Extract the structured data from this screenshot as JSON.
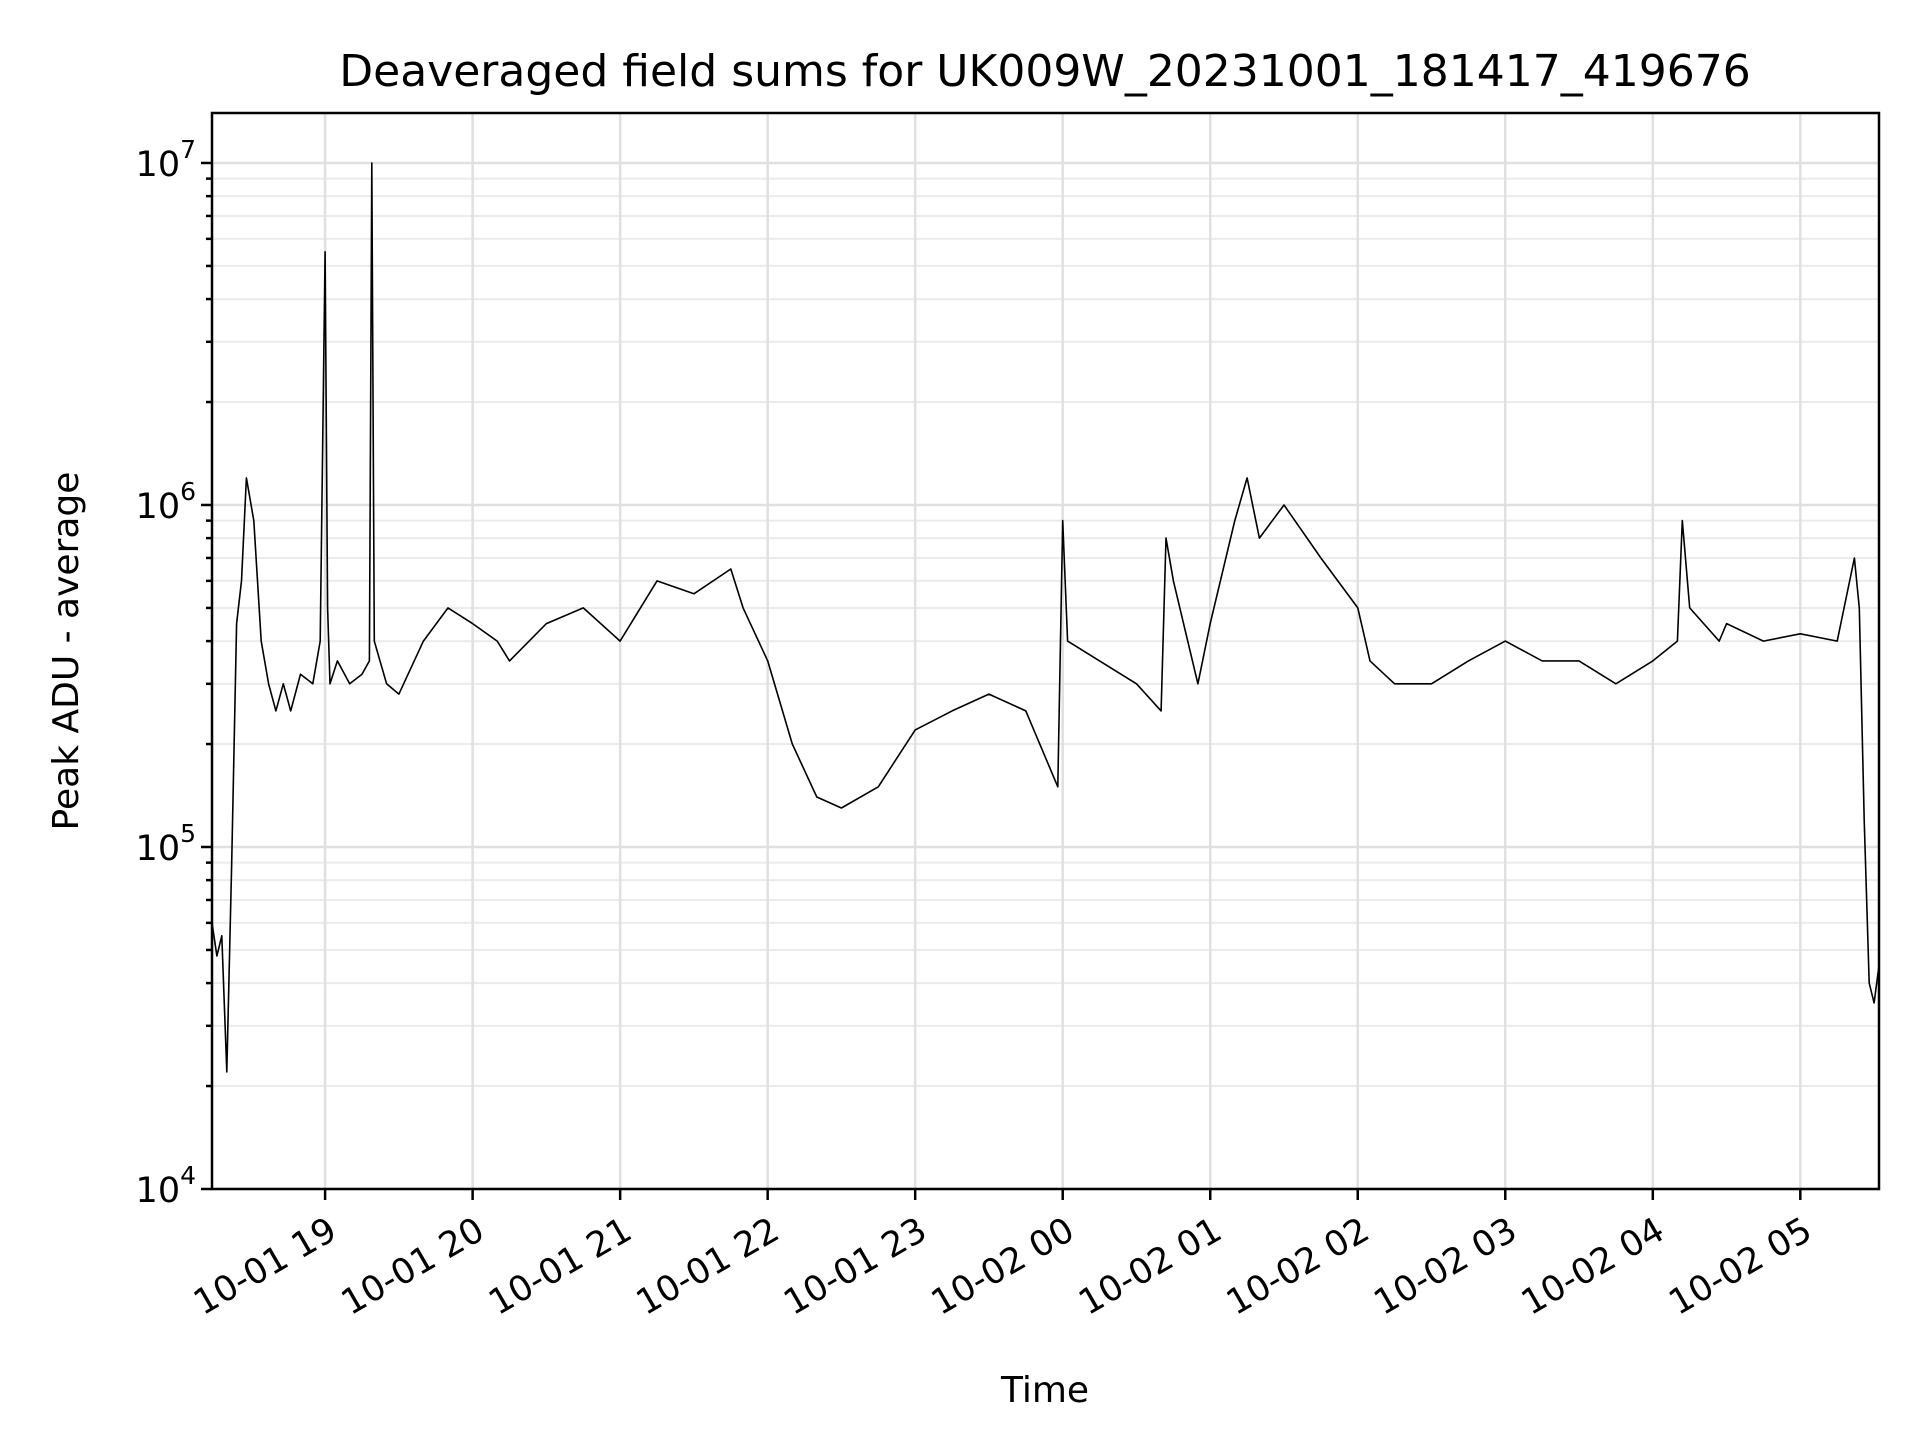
{
  "chart_data": {
    "type": "line",
    "title": "Deaveraged field sums for UK009W_20231001_181417_419676",
    "xlabel": "Time",
    "ylabel": "Peak ADU - average",
    "yscale": "log",
    "ylim": [
      10000,
      14000000
    ],
    "xlim": [
      "2023-10-01 18:14",
      "2023-10-02 05:32"
    ],
    "grid": true,
    "line_color": "#000000",
    "x_ticks": [
      {
        "value": "2023-10-01 19:00",
        "label": "10-01 19"
      },
      {
        "value": "2023-10-01 20:00",
        "label": "10-01 20"
      },
      {
        "value": "2023-10-01 21:00",
        "label": "10-01 21"
      },
      {
        "value": "2023-10-01 22:00",
        "label": "10-01 22"
      },
      {
        "value": "2023-10-01 23:00",
        "label": "10-01 23"
      },
      {
        "value": "2023-10-02 00:00",
        "label": "10-02 00"
      },
      {
        "value": "2023-10-02 01:00",
        "label": "10-02 01"
      },
      {
        "value": "2023-10-02 02:00",
        "label": "10-02 02"
      },
      {
        "value": "2023-10-02 03:00",
        "label": "10-02 03"
      },
      {
        "value": "2023-10-02 04:00",
        "label": "10-02 04"
      },
      {
        "value": "2023-10-02 05:00",
        "label": "10-02 05"
      }
    ],
    "y_ticks": [
      {
        "value": 10000,
        "base": "10",
        "exp": "4"
      },
      {
        "value": 100000,
        "base": "10",
        "exp": "5"
      },
      {
        "value": 1000000,
        "base": "10",
        "exp": "6"
      },
      {
        "value": 10000000,
        "base": "10",
        "exp": "7"
      }
    ],
    "series": [
      {
        "x": [
          "2023-10-01 18:14",
          "2023-10-01 18:16",
          "2023-10-01 18:18",
          "2023-10-01 18:20",
          "2023-10-01 18:22",
          "2023-10-01 18:24",
          "2023-10-01 18:26",
          "2023-10-01 18:28",
          "2023-10-01 18:31",
          "2023-10-01 18:34",
          "2023-10-01 18:37",
          "2023-10-01 18:40",
          "2023-10-01 18:43",
          "2023-10-01 18:46",
          "2023-10-01 18:50",
          "2023-10-01 18:55",
          "2023-10-01 18:58",
          "2023-10-01 19:00",
          "2023-10-01 19:01",
          "2023-10-01 19:02",
          "2023-10-01 19:05",
          "2023-10-01 19:10",
          "2023-10-01 19:15",
          "2023-10-01 19:18",
          "2023-10-01 19:19",
          "2023-10-01 19:20",
          "2023-10-01 19:25",
          "2023-10-01 19:30",
          "2023-10-01 19:40",
          "2023-10-01 19:50",
          "2023-10-01 20:00",
          "2023-10-01 20:10",
          "2023-10-01 20:15",
          "2023-10-01 20:30",
          "2023-10-01 20:45",
          "2023-10-01 21:00",
          "2023-10-01 21:15",
          "2023-10-01 21:30",
          "2023-10-01 21:45",
          "2023-10-01 21:50",
          "2023-10-01 22:00",
          "2023-10-01 22:10",
          "2023-10-01 22:20",
          "2023-10-01 22:30",
          "2023-10-01 22:45",
          "2023-10-01 23:00",
          "2023-10-01 23:15",
          "2023-10-01 23:30",
          "2023-10-01 23:45",
          "2023-10-01 23:58",
          "2023-10-02 00:00",
          "2023-10-02 00:02",
          "2023-10-02 00:15",
          "2023-10-02 00:30",
          "2023-10-02 00:40",
          "2023-10-02 00:42",
          "2023-10-02 00:45",
          "2023-10-02 00:55",
          "2023-10-02 01:00",
          "2023-10-02 01:10",
          "2023-10-02 01:15",
          "2023-10-02 01:20",
          "2023-10-02 01:30",
          "2023-10-02 01:45",
          "2023-10-02 02:00",
          "2023-10-02 02:05",
          "2023-10-02 02:15",
          "2023-10-02 02:30",
          "2023-10-02 02:45",
          "2023-10-02 03:00",
          "2023-10-02 03:15",
          "2023-10-02 03:30",
          "2023-10-02 03:45",
          "2023-10-02 04:00",
          "2023-10-02 04:10",
          "2023-10-02 04:12",
          "2023-10-02 04:15",
          "2023-10-02 04:27",
          "2023-10-02 04:30",
          "2023-10-02 04:45",
          "2023-10-02 05:00",
          "2023-10-02 05:15",
          "2023-10-02 05:22",
          "2023-10-02 05:24",
          "2023-10-02 05:26",
          "2023-10-02 05:28",
          "2023-10-02 05:30",
          "2023-10-02 05:32"
        ],
        "y": [
          60000,
          48000,
          55000,
          22000,
          90000,
          450000,
          600000,
          1200000,
          900000,
          400000,
          300000,
          250000,
          300000,
          250000,
          320000,
          300000,
          400000,
          5500000,
          500000,
          300000,
          350000,
          300000,
          320000,
          350000,
          10000000,
          400000,
          300000,
          280000,
          400000,
          500000,
          450000,
          400000,
          350000,
          450000,
          500000,
          400000,
          600000,
          550000,
          650000,
          500000,
          350000,
          200000,
          140000,
          130000,
          150000,
          220000,
          250000,
          280000,
          250000,
          150000,
          900000,
          400000,
          350000,
          300000,
          250000,
          800000,
          600000,
          300000,
          450000,
          900000,
          1200000,
          800000,
          1000000,
          700000,
          500000,
          350000,
          300000,
          300000,
          350000,
          400000,
          350000,
          350000,
          300000,
          350000,
          400000,
          900000,
          500000,
          400000,
          450000,
          400000,
          420000,
          400000,
          700000,
          500000,
          120000,
          40000,
          35000,
          45000
        ]
      }
    ]
  }
}
